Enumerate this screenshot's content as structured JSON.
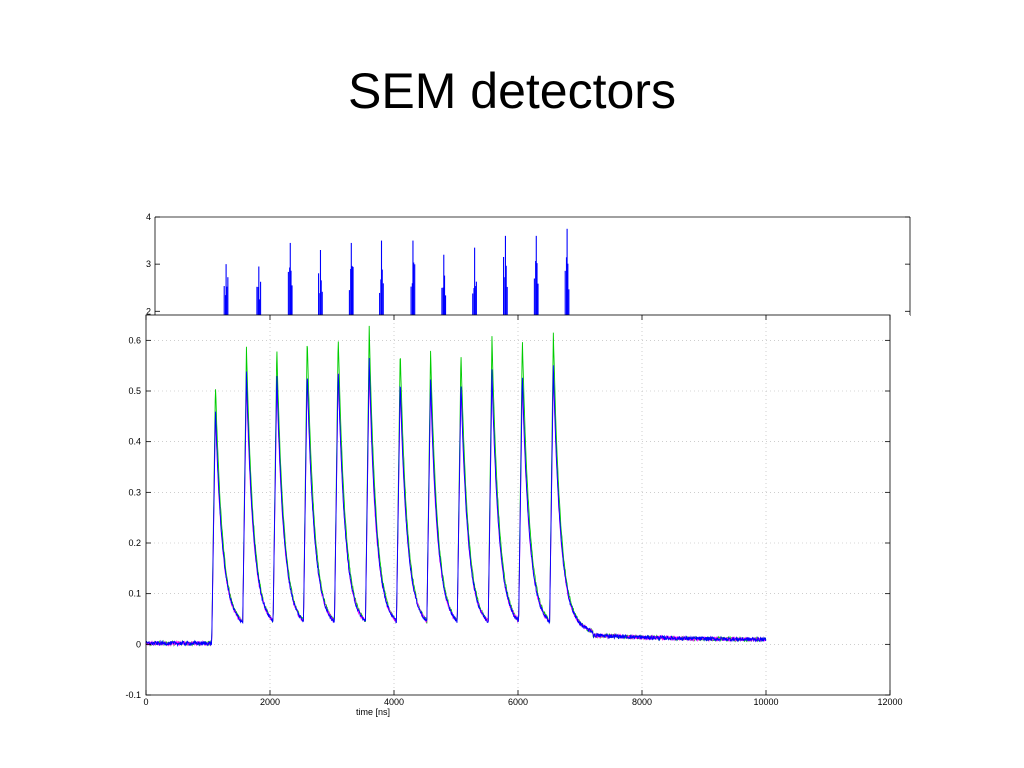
{
  "slide": {
    "title": "SEM detectors"
  },
  "chart_data": [
    {
      "type": "line",
      "title": "",
      "xlabel": "",
      "ylabel": "",
      "xlim": [
        0,
        12000
      ],
      "ylim": [
        1.9,
        4
      ],
      "yticks": [
        2,
        3,
        4
      ],
      "ytick_labels": [
        "2",
        "3",
        "4"
      ],
      "grid": false,
      "partially_hidden": true,
      "series": [
        {
          "color": "#0000ff",
          "spike_times": [
            1130,
            1650,
            2150,
            2630,
            3120,
            3600,
            4100,
            4590,
            5080,
            5570,
            6060,
            6550
          ],
          "spike_peaks": [
            3.0,
            2.95,
            3.45,
            3.3,
            3.45,
            3.5,
            3.5,
            3.2,
            3.35,
            3.6,
            3.6,
            3.75
          ]
        }
      ]
    },
    {
      "type": "line",
      "title": "",
      "xlabel": "time [ns]",
      "ylabel": "",
      "xlim": [
        0,
        12000
      ],
      "ylim": [
        -0.1,
        0.65
      ],
      "xticks": [
        0,
        2000,
        4000,
        6000,
        8000,
        10000,
        12000
      ],
      "xtick_labels": [
        "0",
        "2000",
        "4000",
        "6000",
        "8000",
        "10000",
        "12000"
      ],
      "yticks": [
        -0.1,
        0,
        0.1,
        0.2,
        0.3,
        0.4,
        0.5,
        0.6
      ],
      "ytick_labels": [
        "-0.1",
        "0",
        "0.1",
        "0.2",
        "0.3",
        "0.4",
        "0.5",
        "0.6"
      ],
      "grid": true,
      "pulse_times": [
        1060,
        1560,
        2050,
        2540,
        3040,
        3540,
        4040,
        4530,
        5020,
        5520,
        6010,
        6510
      ],
      "baseline_before": 0.002,
      "pulse_valley": 0.025,
      "tail_end_time": 10000,
      "tail_end_value": 0.008,
      "series": [
        {
          "color": "#00cc00",
          "peaks": [
            0.515,
            0.585,
            0.585,
            0.605,
            0.61,
            0.625,
            0.58,
            0.58,
            0.575,
            0.605,
            0.605,
            0.615
          ]
        },
        {
          "color": "#ff00ff",
          "peaks": [
            0.455,
            0.52,
            0.52,
            0.535,
            0.54,
            0.545,
            0.51,
            0.51,
            0.51,
            0.53,
            0.52,
            0.54
          ]
        },
        {
          "color": "#0000ff",
          "peaks": [
            0.465,
            0.535,
            0.535,
            0.54,
            0.545,
            0.565,
            0.52,
            0.525,
            0.52,
            0.54,
            0.535,
            0.55
          ]
        }
      ]
    }
  ]
}
